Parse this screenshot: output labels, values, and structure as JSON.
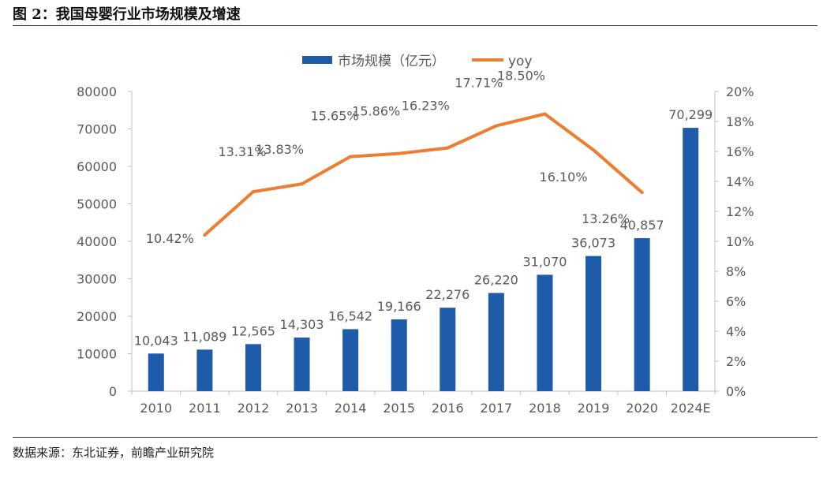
{
  "figure": {
    "title": "图 2：我国母婴行业市场规模及增速",
    "source": "数据来源：东北证券，前瞻产业研究院"
  },
  "colors": {
    "bar": "#1E5BA8",
    "line": "#ED7D31",
    "axis": "#BFBFBF",
    "text": "#595959"
  },
  "chart_data": {
    "type": "bar",
    "categories": [
      "2010",
      "2011",
      "2012",
      "2013",
      "2014",
      "2015",
      "2016",
      "2017",
      "2018",
      "2019",
      "2020",
      "2024E"
    ],
    "series": [
      {
        "name": "市场规模（亿元）",
        "type": "bar",
        "axis": "left",
        "values": [
          10043,
          11089,
          12565,
          14303,
          16542,
          19166,
          22276,
          26220,
          31070,
          36073,
          40857,
          70299
        ],
        "labels": [
          "10,043",
          "11,089",
          "12,565",
          "14,303",
          "16,542",
          "19,166",
          "22,276",
          "26,220",
          "31,070",
          "36,073",
          "40,857",
          "70,299"
        ]
      },
      {
        "name": "yoy",
        "type": "line",
        "axis": "right",
        "values": [
          null,
          10.42,
          13.31,
          13.83,
          15.65,
          15.86,
          16.23,
          17.71,
          18.5,
          16.1,
          13.26,
          null
        ],
        "labels": [
          "",
          "10.42%",
          "13.31%",
          "13.83%",
          "15.65%",
          "15.86%",
          "16.23%",
          "17.71%",
          "18.50%",
          "16.10%",
          "13.26%",
          ""
        ]
      }
    ],
    "y_left": {
      "lim": [
        0,
        80000
      ],
      "ticks": [
        "0",
        "10000",
        "20000",
        "30000",
        "40000",
        "50000",
        "60000",
        "70000",
        "80000"
      ]
    },
    "y_right": {
      "lim": [
        0,
        20
      ],
      "ticks": [
        "0%",
        "2%",
        "4%",
        "6%",
        "8%",
        "10%",
        "12%",
        "14%",
        "16%",
        "18%",
        "20%"
      ]
    },
    "legend": "top-center",
    "grid": false
  }
}
